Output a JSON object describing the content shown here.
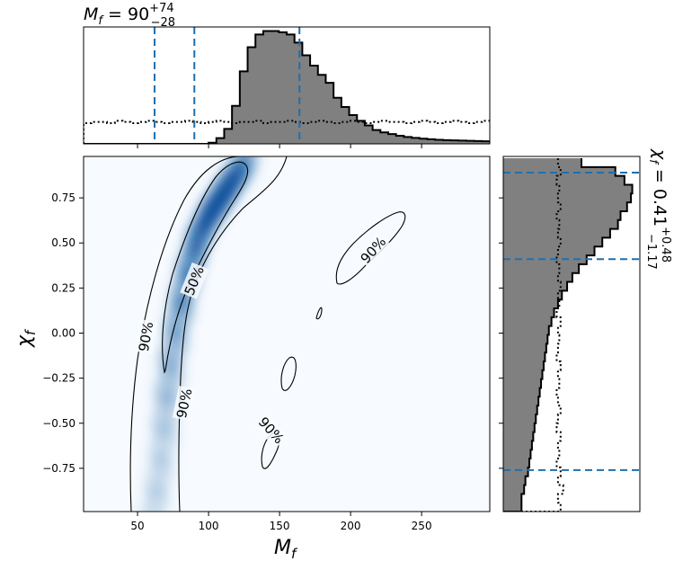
{
  "colors": {
    "hist_fill": "#808080",
    "dashed_line": "#1f6fae",
    "density_light": "#f7fbff",
    "density_dark": "#08519c"
  },
  "titles": {
    "top_prefix": "M",
    "top_sub": "f",
    "top_eq": " = 90",
    "top_sup": "+74",
    "top_inf": "−28",
    "right_prefix": "χ",
    "right_sub": "f",
    "right_eq": " = 0.41",
    "right_sup": "+0.48",
    "right_inf": "−1.17"
  },
  "chart_data": {
    "type": "heatmap",
    "xlabel": "M",
    "xlabel_sub": "f",
    "ylabel": "χ",
    "ylabel_sub": "f",
    "xlim": [
      12,
      298
    ],
    "ylim": [
      -0.99,
      0.98
    ],
    "xticks": [
      50,
      100,
      150,
      200,
      250
    ],
    "yticks": [
      0.75,
      0.5,
      0.25,
      0.0,
      -0.25,
      -0.5,
      -0.75
    ],
    "ytick_labels": [
      "0.75",
      "0.50",
      "0.25",
      "0.00",
      "−0.25",
      "−0.50",
      "−0.75"
    ],
    "contour_labels": [
      {
        "text": "50%",
        "x": 90,
        "y": 0.29,
        "angle": -68
      },
      {
        "text": "90%",
        "x": 216,
        "y": 0.46,
        "angle": -48
      },
      {
        "text": "90%",
        "x": 56,
        "y": -0.02,
        "angle": -80
      },
      {
        "text": "90%",
        "x": 83,
        "y": -0.39,
        "angle": -78
      },
      {
        "text": "90%",
        "x": 144,
        "y": -0.54,
        "angle": 48
      }
    ],
    "mf_quantiles": [
      62,
      90,
      164
    ],
    "chi_quantiles": [
      0.89,
      0.41,
      -0.76
    ],
    "mf_hist": {
      "edges_start": 12,
      "bin_width": 5.5,
      "values": [
        0.0,
        0.0,
        0.0,
        0.0,
        0.0,
        0.0,
        0.0,
        0.0,
        0.0,
        0.0,
        0.0,
        0.0,
        0.0,
        0.0,
        0.0,
        0.0,
        0.01,
        0.05,
        0.13,
        0.33,
        0.63,
        0.84,
        0.95,
        0.98,
        0.98,
        0.97,
        0.95,
        0.88,
        0.77,
        0.68,
        0.6,
        0.53,
        0.4,
        0.32,
        0.25,
        0.2,
        0.16,
        0.12,
        0.1,
        0.085,
        0.07,
        0.06,
        0.052,
        0.045,
        0.04,
        0.035,
        0.032,
        0.03,
        0.028,
        0.026,
        0.024,
        0.022,
        0.02,
        0.018,
        0.017,
        0.016,
        0.015,
        0.014,
        0.013,
        0.012,
        0.011,
        0.01,
        0.009,
        0.008,
        0.007,
        0.006,
        0.005,
        0.004,
        0.003,
        0.002,
        0.001,
        0.0
      ]
    },
    "mf_prior": {
      "edges_start": 12,
      "bin_width": 5.5,
      "values": [
        0.18,
        0.19,
        0.19,
        0.18,
        0.2,
        0.19,
        0.18,
        0.19,
        0.2,
        0.19,
        0.18,
        0.19,
        0.19,
        0.2,
        0.19,
        0.18,
        0.19,
        0.2,
        0.19,
        0.18,
        0.19,
        0.19,
        0.2,
        0.18,
        0.19,
        0.19,
        0.2,
        0.19,
        0.18,
        0.19,
        0.2,
        0.19,
        0.18,
        0.19,
        0.2,
        0.19,
        0.18,
        0.19,
        0.2,
        0.19,
        0.19,
        0.18,
        0.19,
        0.2,
        0.19,
        0.18,
        0.19,
        0.2,
        0.19,
        0.18,
        0.19,
        0.2,
        0.19,
        0.18,
        0.19,
        0.2,
        0.21,
        0.19,
        0.18,
        0.2,
        0.19,
        0.2,
        0.19,
        0.18,
        0.2,
        0.19,
        0.22,
        0.18,
        0.2,
        0.19,
        0.2,
        0.19
      ]
    },
    "chi_hist": {
      "edges_start": -0.99,
      "bin_width": 0.049,
      "values": [
        0.14,
        0.14,
        0.16,
        0.17,
        0.19,
        0.2,
        0.21,
        0.22,
        0.23,
        0.24,
        0.25,
        0.26,
        0.27,
        0.28,
        0.29,
        0.3,
        0.31,
        0.32,
        0.33,
        0.34,
        0.35,
        0.37,
        0.39,
        0.42,
        0.45,
        0.49,
        0.53,
        0.58,
        0.64,
        0.7,
        0.76,
        0.82,
        0.88,
        0.9,
        0.95,
        0.98,
        0.99,
        0.93,
        0.86,
        0.6
      ]
    },
    "chi_prior": {
      "edges_start": -0.99,
      "bin_width": 0.049,
      "values": [
        0.44,
        0.42,
        0.46,
        0.42,
        0.44,
        0.41,
        0.43,
        0.42,
        0.44,
        0.41,
        0.42,
        0.44,
        0.42,
        0.41,
        0.43,
        0.42,
        0.44,
        0.41,
        0.42,
        0.43,
        0.42,
        0.44,
        0.41,
        0.43,
        0.42,
        0.44,
        0.42,
        0.43,
        0.41,
        0.42,
        0.44,
        0.42,
        0.43,
        0.41,
        0.44,
        0.42,
        0.43,
        0.41,
        0.44,
        0.42
      ]
    }
  }
}
